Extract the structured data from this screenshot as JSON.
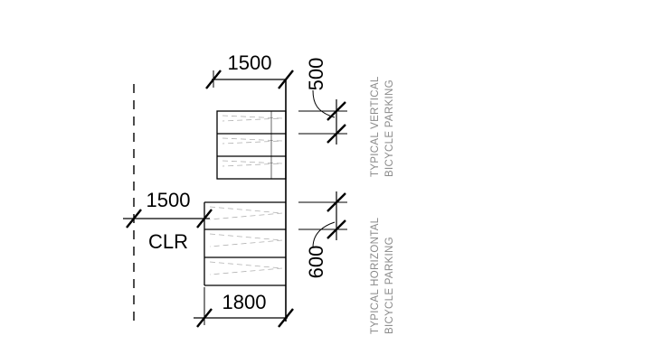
{
  "dimensions": {
    "top_width": "1500",
    "vertical_spacing": "500",
    "clearance_width": "1500",
    "clearance_label": "CLR",
    "horizontal_spacing": "600",
    "bottom_width": "1800"
  },
  "notes": {
    "vertical_parking": [
      "TYPICAL VERTICAL",
      "BICYCLE PARKING"
    ],
    "horizontal_parking": [
      "TYPICAL HORIZONTAL",
      "BICYCLE PARKING"
    ]
  }
}
